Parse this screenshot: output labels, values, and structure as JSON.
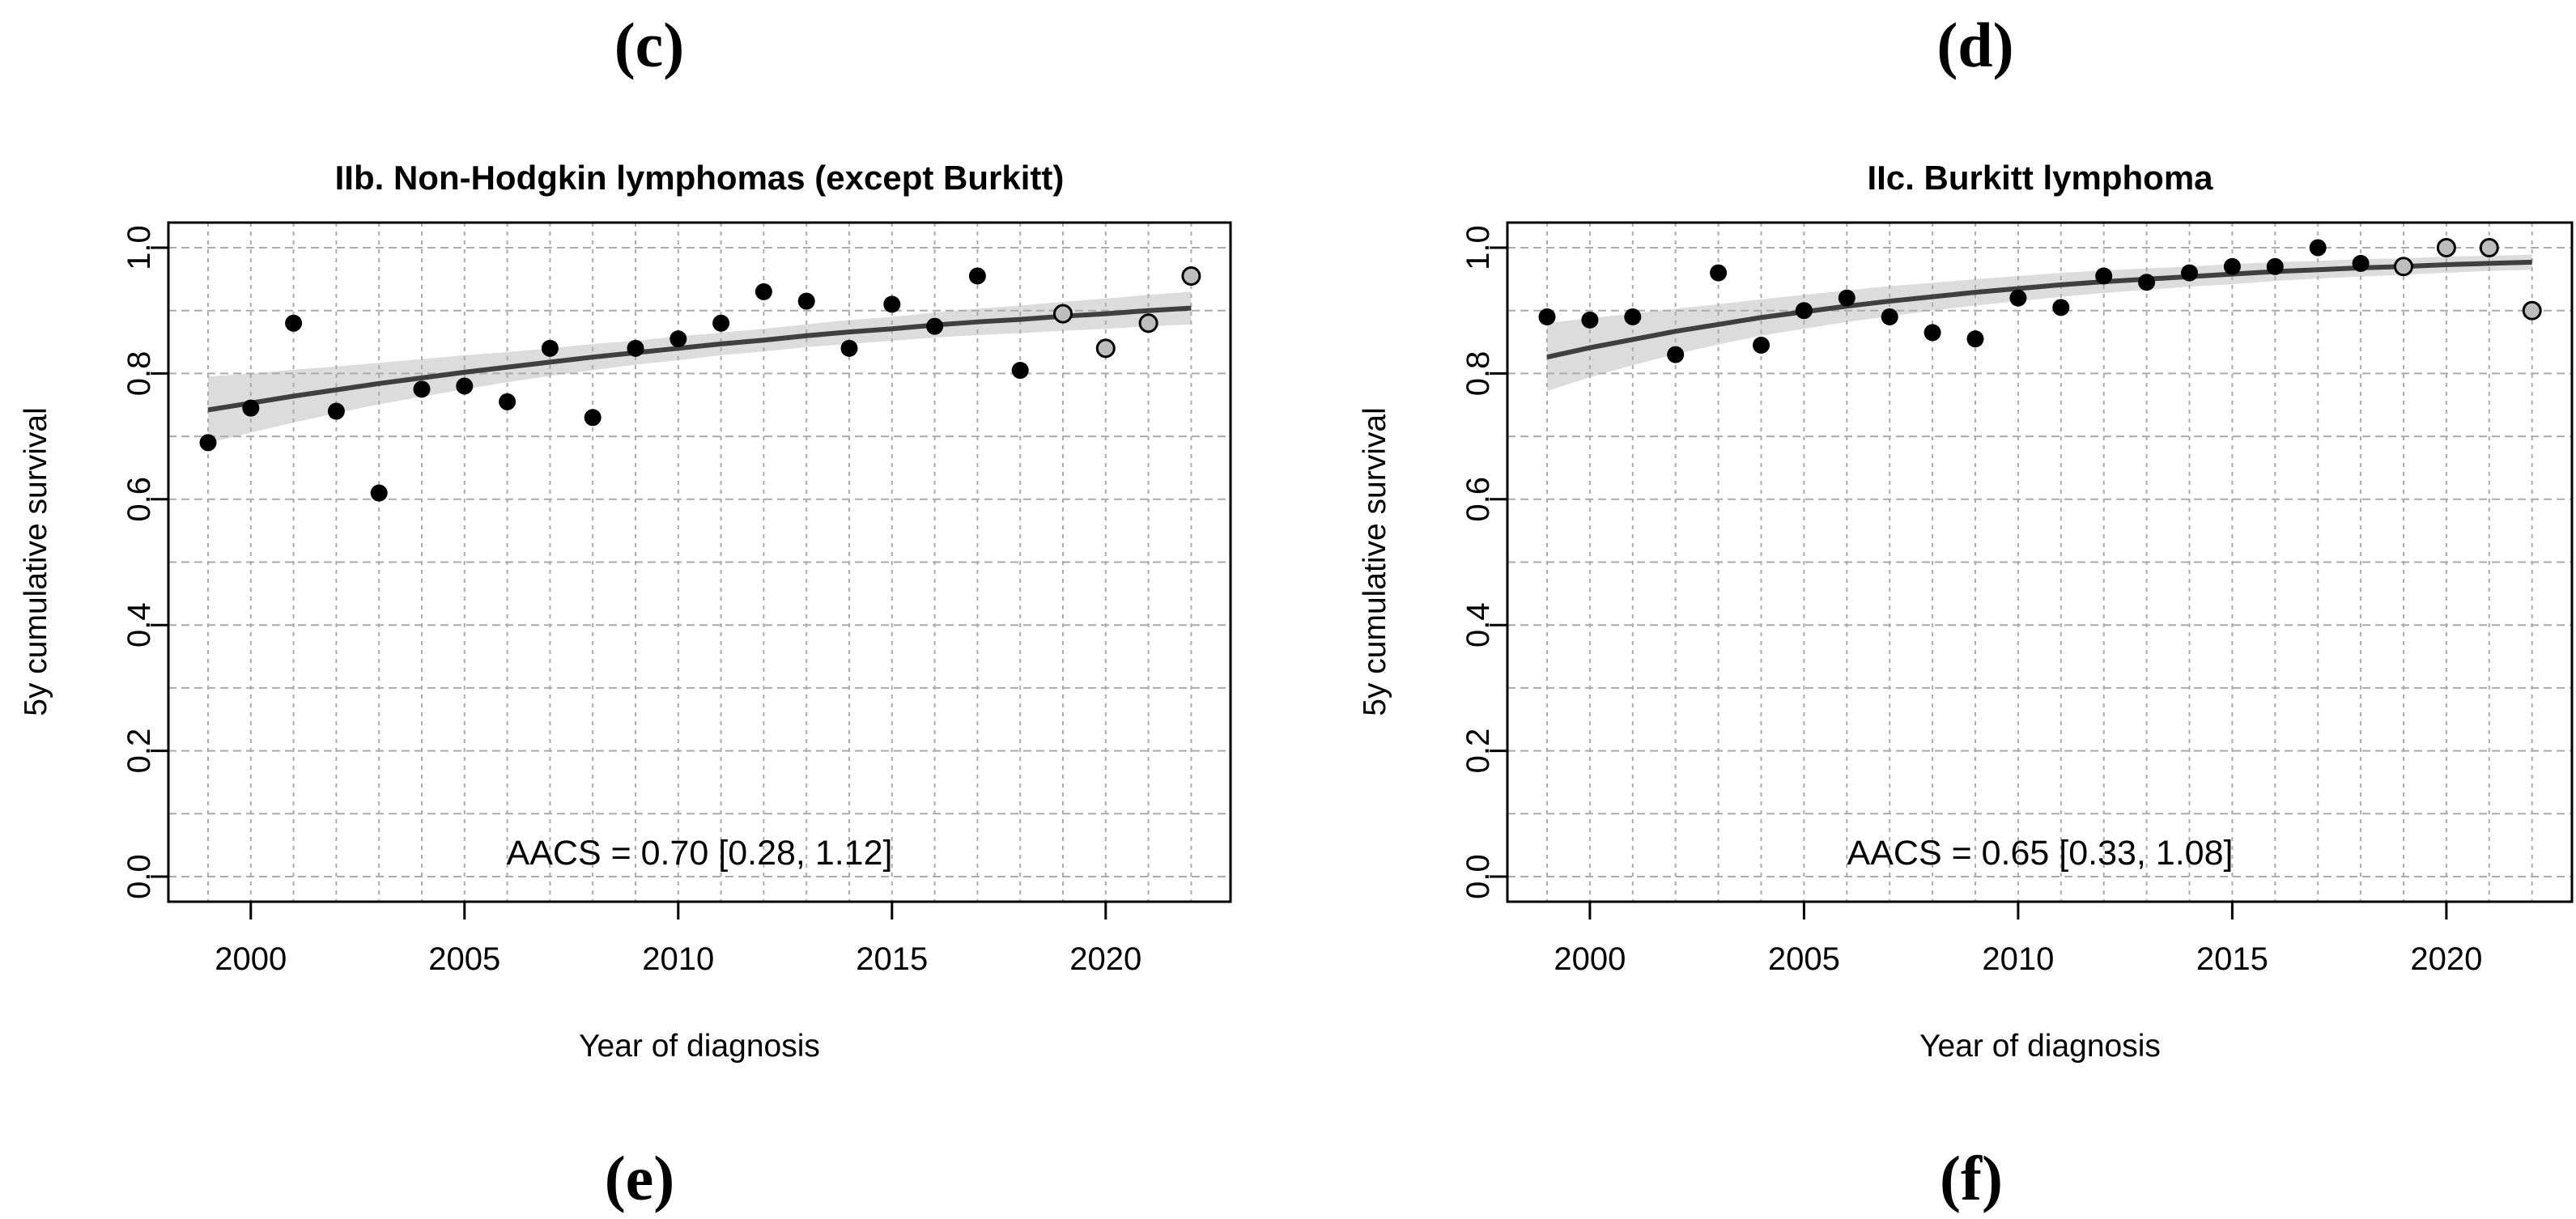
{
  "page": {
    "background": "#ffffff"
  },
  "panel_labels": {
    "top_left": "(c)",
    "top_right": "(d)",
    "bottom_left": "(e)",
    "bottom_right": "(f)"
  },
  "chart_data": [
    {
      "type": "scatter",
      "title": "IIb. Non-Hodgkin lymphomas (except Burkitt)",
      "xlabel": "Year of diagnosis",
      "ylabel": "5y cumulative survival",
      "annotation": "AACS = 0.70 [0.28, 1.12]",
      "xlim": [
        1999,
        2022
      ],
      "ylim": [
        0.0,
        1.0
      ],
      "grid": "dashed gridlines: every year on x, every 0.1 on y",
      "legend": "none",
      "x_ticks": [
        2000,
        2005,
        2010,
        2015,
        2020
      ],
      "x_tick_labels": [
        "2000",
        "2005",
        "2010",
        "2015",
        "2020"
      ],
      "y_ticks": [
        0.0,
        0.2,
        0.4,
        0.6,
        0.8,
        1.0
      ],
      "y_tick_labels": [
        "0.0",
        "0.2",
        "0.4",
        "0.6",
        "0.8",
        "1.0"
      ],
      "y_gridlines": [
        0.0,
        0.1,
        0.2,
        0.3,
        0.4,
        0.5,
        0.6,
        0.7,
        0.8,
        0.9,
        1.0
      ],
      "years": [
        1999,
        2000,
        2001,
        2002,
        2003,
        2004,
        2005,
        2006,
        2007,
        2008,
        2009,
        2010,
        2011,
        2012,
        2013,
        2014,
        2015,
        2016,
        2017,
        2018,
        2019,
        2020,
        2021,
        2022
      ],
      "survival": [
        0.69,
        0.745,
        0.88,
        0.74,
        0.61,
        0.775,
        0.78,
        0.755,
        0.84,
        0.73,
        0.84,
        0.855,
        0.88,
        0.93,
        0.915,
        0.84,
        0.91,
        0.875,
        0.955,
        0.805,
        0.895,
        0.84,
        0.88,
        0.955
      ],
      "projected_years": [
        2019,
        2020,
        2021,
        2022
      ],
      "trend": [
        0.742,
        0.753,
        0.764,
        0.774,
        0.784,
        0.793,
        0.802,
        0.81,
        0.818,
        0.826,
        0.833,
        0.84,
        0.847,
        0.853,
        0.86,
        0.866,
        0.871,
        0.877,
        0.882,
        0.886,
        0.891,
        0.895,
        0.9,
        0.904
      ],
      "ci_halfwidth": [
        0.053,
        0.047,
        0.042,
        0.037,
        0.033,
        0.03,
        0.027,
        0.024,
        0.022,
        0.021,
        0.019,
        0.019,
        0.018,
        0.018,
        0.018,
        0.019,
        0.019,
        0.02,
        0.021,
        0.022,
        0.023,
        0.024,
        0.025,
        0.026
      ],
      "colors": {
        "point": "#000000",
        "projected_point_fill": "#bdbdbd",
        "projected_point_stroke": "#000000",
        "trend_line": "#3f3f3f",
        "ci_band": "#dcdcdc",
        "grid": "#ababab",
        "axis": "#000000"
      }
    },
    {
      "type": "scatter",
      "title": "IIc. Burkitt lymphoma",
      "xlabel": "Year of diagnosis",
      "ylabel": "5y cumulative survival",
      "annotation": "AACS = 0.65 [0.33, 1.08]",
      "xlim": [
        1999,
        2022
      ],
      "ylim": [
        0.0,
        1.0
      ],
      "grid": "dashed gridlines: every year on x, every 0.1 on y",
      "legend": "none",
      "x_ticks": [
        2000,
        2005,
        2010,
        2015,
        2020
      ],
      "x_tick_labels": [
        "2000",
        "2005",
        "2010",
        "2015",
        "2020"
      ],
      "y_ticks": [
        0.0,
        0.2,
        0.4,
        0.6,
        0.8,
        1.0
      ],
      "y_tick_labels": [
        "0.0",
        "0.2",
        "0.4",
        "0.6",
        "0.8",
        "1.0"
      ],
      "y_gridlines": [
        0.0,
        0.1,
        0.2,
        0.3,
        0.4,
        0.5,
        0.6,
        0.7,
        0.8,
        0.9,
        1.0
      ],
      "years": [
        1999,
        2000,
        2001,
        2002,
        2003,
        2004,
        2005,
        2006,
        2007,
        2008,
        2009,
        2010,
        2011,
        2012,
        2013,
        2014,
        2015,
        2016,
        2017,
        2018,
        2019,
        2020,
        2021,
        2022
      ],
      "survival": [
        0.89,
        0.885,
        0.89,
        0.83,
        0.96,
        0.845,
        0.9,
        0.92,
        0.89,
        0.865,
        0.855,
        0.92,
        0.905,
        0.955,
        0.945,
        0.96,
        0.97,
        0.97,
        1.0,
        0.975,
        0.97,
        1.0,
        1.0,
        0.9
      ],
      "projected_years": [
        2019,
        2020,
        2021,
        2022
      ],
      "trend": [
        0.826,
        0.841,
        0.854,
        0.867,
        0.878,
        0.889,
        0.898,
        0.907,
        0.915,
        0.922,
        0.929,
        0.935,
        0.941,
        0.946,
        0.95,
        0.954,
        0.958,
        0.962,
        0.965,
        0.968,
        0.97,
        0.973,
        0.975,
        0.977
      ],
      "ci_halfwidth": [
        0.054,
        0.047,
        0.041,
        0.036,
        0.032,
        0.029,
        0.027,
        0.025,
        0.024,
        0.022,
        0.021,
        0.02,
        0.019,
        0.018,
        0.017,
        0.016,
        0.016,
        0.015,
        0.014,
        0.014,
        0.013,
        0.013,
        0.012,
        0.012
      ],
      "colors": {
        "point": "#000000",
        "projected_point_fill": "#bdbdbd",
        "projected_point_stroke": "#000000",
        "trend_line": "#3f3f3f",
        "ci_band": "#dcdcdc",
        "grid": "#ababab",
        "axis": "#000000"
      }
    }
  ]
}
